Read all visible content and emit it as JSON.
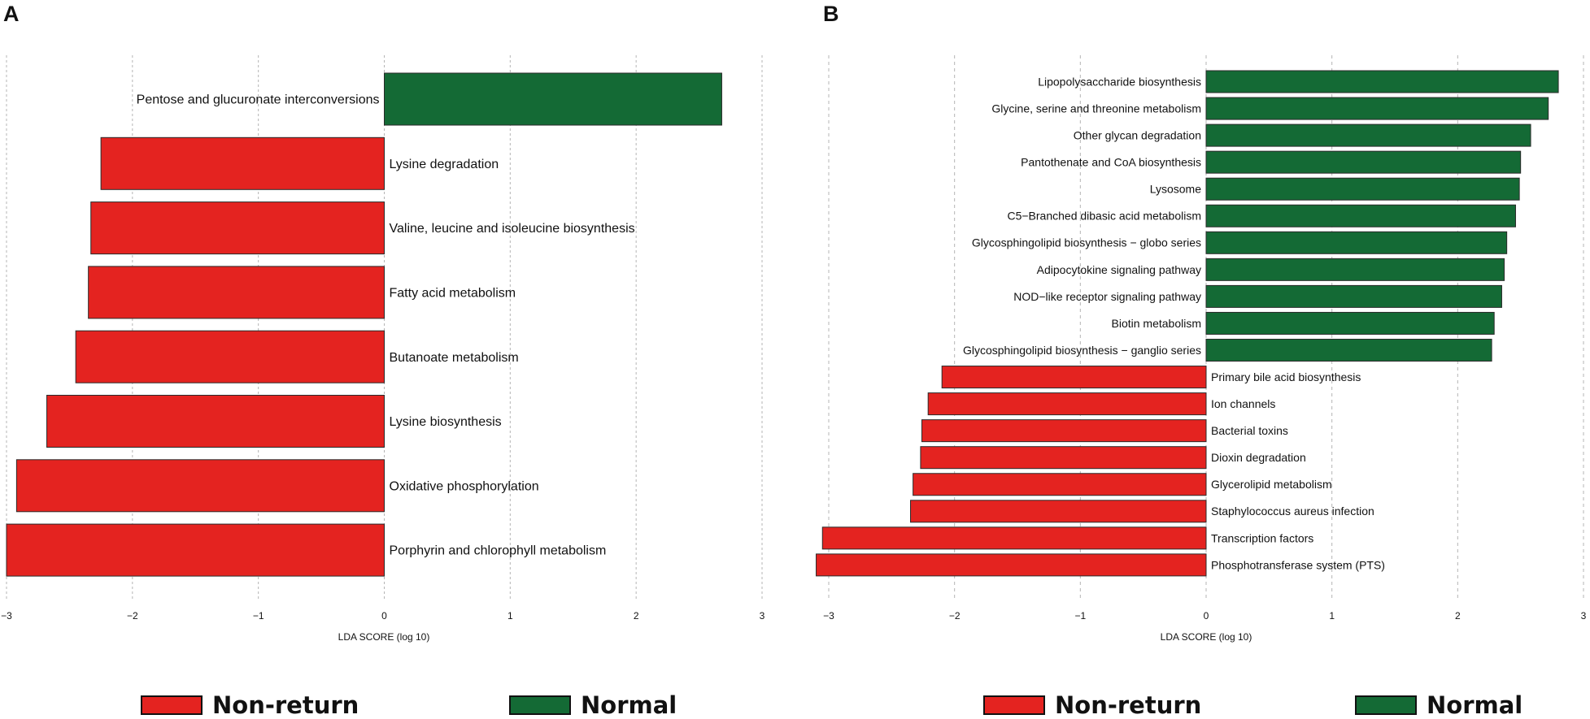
{
  "colors": {
    "non_return": "#e42320",
    "normal": "#146a35",
    "grid": "#b5b5b5",
    "text": "#111111"
  },
  "chart_data": [
    {
      "panel_label": "A",
      "type": "bar",
      "orientation": "horizontal",
      "xlabel": "LDA SCORE (log 10)",
      "xlim": [
        -3,
        3
      ],
      "xticks": [
        -3,
        -2,
        -1,
        0,
        1,
        2,
        3
      ],
      "xtick_labels": [
        "−3",
        "−2",
        "−1",
        "0",
        "1",
        "2",
        "3"
      ],
      "grid": true,
      "categories": [
        "Pentose and glucuronate interconversions",
        "Lysine degradation",
        "Valine, leucine and isoleucine biosynthesis",
        "Fatty acid metabolism",
        "Butanoate metabolism",
        "Lysine biosynthesis",
        "Oxidative phosphorylation",
        "Porphyrin and chlorophyll metabolism"
      ],
      "values": [
        2.68,
        -2.25,
        -2.33,
        -2.35,
        -2.45,
        -2.68,
        -2.92,
        -3.0
      ],
      "groups": [
        "Normal",
        "Non-return",
        "Non-return",
        "Non-return",
        "Non-return",
        "Non-return",
        "Non-return",
        "Non-return"
      ],
      "legend": [
        {
          "label": "Non-return",
          "color": "#e42320"
        },
        {
          "label": "Normal",
          "color": "#146a35"
        }
      ]
    },
    {
      "panel_label": "B",
      "type": "bar",
      "orientation": "horizontal",
      "xlabel": "LDA SCORE (log 10)",
      "xlim": [
        -3,
        3
      ],
      "xticks": [
        -3,
        -2,
        -1,
        0,
        1,
        2,
        3
      ],
      "xtick_labels": [
        "−3",
        "−2",
        "−1",
        "0",
        "1",
        "2",
        "3"
      ],
      "grid": true,
      "categories": [
        "Lipopolysaccharide biosynthesis",
        "Glycine, serine and threonine metabolism",
        "Other glycan degradation",
        "Pantothenate and CoA biosynthesis",
        "Lysosome",
        "C5−Branched dibasic acid metabolism",
        "Glycosphingolipid biosynthesis − globo series",
        "Adipocytokine signaling pathway",
        "NOD−like receptor signaling pathway",
        "Biotin metabolism",
        "Glycosphingolipid biosynthesis − ganglio series",
        "Primary bile acid biosynthesis",
        "Ion channels",
        "Bacterial toxins",
        "Dioxin degradation",
        "Glycerolipid metabolism",
        "Staphylococcus aureus infection",
        "Transcription factors",
        "Phosphotransferase system (PTS)"
      ],
      "values": [
        2.8,
        2.72,
        2.58,
        2.5,
        2.49,
        2.46,
        2.39,
        2.37,
        2.35,
        2.29,
        2.27,
        -2.1,
        -2.21,
        -2.26,
        -2.27,
        -2.33,
        -2.35,
        -3.05,
        -3.1
      ],
      "groups": [
        "Normal",
        "Normal",
        "Normal",
        "Normal",
        "Normal",
        "Normal",
        "Normal",
        "Normal",
        "Normal",
        "Normal",
        "Normal",
        "Non-return",
        "Non-return",
        "Non-return",
        "Non-return",
        "Non-return",
        "Non-return",
        "Non-return",
        "Non-return"
      ],
      "legend": [
        {
          "label": "Non-return",
          "color": "#e42320"
        },
        {
          "label": "Normal",
          "color": "#146a35"
        }
      ]
    }
  ]
}
